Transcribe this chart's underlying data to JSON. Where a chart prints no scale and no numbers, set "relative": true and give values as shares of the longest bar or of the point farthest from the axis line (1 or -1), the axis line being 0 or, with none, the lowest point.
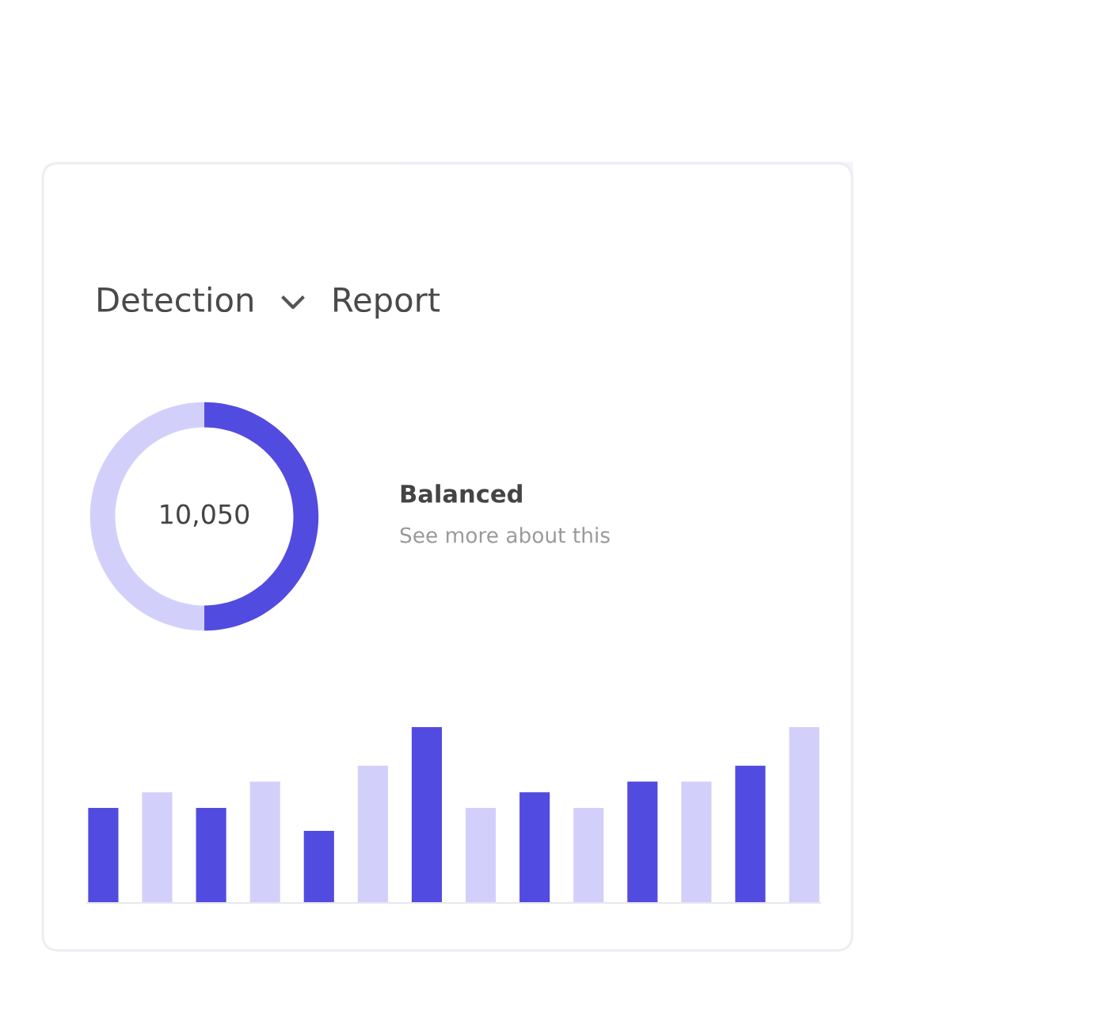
{
  "chart_data": [
    {
      "type": "other",
      "annotations": [
        "Detection",
        "Report",
        "Balanced",
        "See more about this"
      ]
    },
    {
      "type": "donut",
      "categories": [
        null,
        null
      ],
      "values": [
        50,
        50
      ],
      "colors": [
        "#524be0",
        "#d2d0fb"
      ],
      "annotations": [
        "10,050"
      ]
    },
    {
      "type": "bar",
      "relative": true,
      "categories": [
        null,
        null,
        null,
        null,
        null,
        null,
        null,
        null,
        null,
        null,
        null,
        null,
        null,
        null
      ],
      "values": [
        0.54,
        0.63,
        0.54,
        0.69,
        0.41,
        0.78,
        1,
        0.54,
        0.63,
        0.54,
        0.69,
        0.69,
        0.78,
        1
      ],
      "colors": [
        "#524be0",
        "#d2d0fb",
        "#524be0",
        "#d2d0fb",
        "#524be0",
        "#d2d0fb",
        "#524be0",
        "#d2d0fb",
        "#524be0",
        "#d2d0fb",
        "#524be0",
        "#d2d0fb",
        "#524be0",
        "#d2d0fb"
      ]
    }
  ]
}
